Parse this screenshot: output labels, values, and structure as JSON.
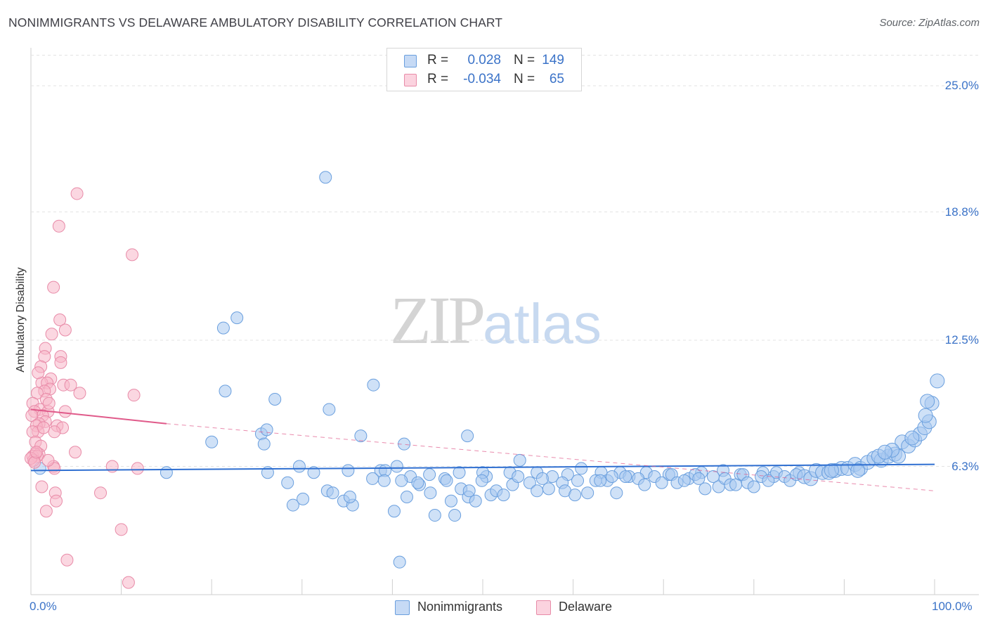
{
  "title": "NONIMMIGRANTS VS DELAWARE AMBULATORY DISABILITY CORRELATION CHART",
  "source": "Source: ZipAtlas.com",
  "watermark": {
    "part1": "ZIP",
    "part2": "atlas"
  },
  "stats": {
    "rows": [
      {
        "r_label": "R =",
        "r_value": "0.028",
        "n_label": "N =",
        "n_value": "149",
        "color": "#a8c8f0"
      },
      {
        "r_label": "R =",
        "r_value": "-0.034",
        "n_label": "N =",
        "n_value": "65",
        "color": "#f7b6c8"
      }
    ]
  },
  "legend": [
    {
      "label": "Nonimmigrants",
      "color": "#a8c8f0"
    },
    {
      "label": "Delaware",
      "color": "#f7b6c8"
    }
  ],
  "chart_data": {
    "type": "scatter",
    "title": "NONIMMIGRANTS VS DELAWARE AMBULATORY DISABILITY CORRELATION CHART",
    "xlabel": "",
    "ylabel": "Ambulatory Disability",
    "xlim": [
      0,
      100
    ],
    "ylim": [
      0,
      26.5
    ],
    "x_tick_labels": [
      "0.0%",
      "100.0%"
    ],
    "y_ticks": [
      6.3,
      12.5,
      18.8,
      25.0
    ],
    "y_tick_labels": [
      "6.3%",
      "12.5%",
      "18.8%",
      "25.0%"
    ],
    "grid": true,
    "series": [
      {
        "name": "Nonimmigrants",
        "color": "#a8c8f0",
        "stroke": "#6a9fde",
        "trend": {
          "x": [
            0,
            100
          ],
          "y": [
            6.1,
            6.4
          ],
          "color": "#2f6fd1",
          "dashed": false
        },
        "points": [
          [
            32.6,
            20.5
          ],
          [
            21.3,
            13.1
          ],
          [
            22.8,
            13.6
          ],
          [
            27.0,
            9.6
          ],
          [
            21.5,
            10.0
          ],
          [
            37.9,
            10.3
          ],
          [
            25.5,
            7.9
          ],
          [
            25.8,
            7.4
          ],
          [
            26.1,
            8.1
          ],
          [
            36.5,
            7.8
          ],
          [
            41.3,
            7.4
          ],
          [
            48.3,
            7.8
          ],
          [
            29.7,
            6.3
          ],
          [
            26.2,
            6.0
          ],
          [
            31.3,
            6.0
          ],
          [
            35.1,
            6.1
          ],
          [
            38.7,
            6.1
          ],
          [
            39.2,
            6.1
          ],
          [
            40.5,
            6.3
          ],
          [
            42.0,
            5.8
          ],
          [
            44.1,
            5.9
          ],
          [
            45.8,
            5.7
          ],
          [
            47.4,
            6.0
          ],
          [
            50.4,
            5.8
          ],
          [
            50.0,
            6.0
          ],
          [
            53.0,
            6.0
          ],
          [
            54.1,
            6.6
          ],
          [
            56.0,
            6.0
          ],
          [
            57.7,
            5.8
          ],
          [
            59.4,
            5.9
          ],
          [
            63.1,
            6.0
          ],
          [
            65.2,
            6.0
          ],
          [
            66.2,
            5.8
          ],
          [
            68.1,
            6.0
          ],
          [
            70.6,
            5.9
          ],
          [
            72.8,
            5.7
          ],
          [
            74.2,
            6.0
          ],
          [
            76.6,
            6.1
          ],
          [
            78.5,
            5.9
          ],
          [
            81.0,
            6.0
          ],
          [
            82.2,
            5.8
          ],
          [
            85.0,
            6.0
          ],
          [
            28.4,
            5.5
          ],
          [
            29.0,
            4.4
          ],
          [
            30.1,
            4.7
          ],
          [
            32.8,
            5.1
          ],
          [
            33.4,
            5.0
          ],
          [
            34.6,
            4.6
          ],
          [
            35.6,
            4.4
          ],
          [
            35.3,
            4.8
          ],
          [
            37.8,
            5.7
          ],
          [
            39.1,
            5.6
          ],
          [
            40.2,
            4.1
          ],
          [
            41.0,
            5.6
          ],
          [
            41.6,
            4.8
          ],
          [
            43.0,
            5.4
          ],
          [
            44.2,
            5.0
          ],
          [
            44.7,
            3.9
          ],
          [
            46.0,
            5.6
          ],
          [
            46.5,
            4.6
          ],
          [
            46.9,
            3.9
          ],
          [
            47.6,
            5.2
          ],
          [
            48.4,
            4.8
          ],
          [
            49.2,
            4.6
          ],
          [
            49.9,
            5.6
          ],
          [
            50.9,
            4.9
          ],
          [
            51.5,
            5.1
          ],
          [
            52.3,
            4.9
          ],
          [
            53.3,
            5.4
          ],
          [
            53.9,
            5.8
          ],
          [
            55.2,
            5.5
          ],
          [
            56.0,
            5.1
          ],
          [
            56.6,
            5.7
          ],
          [
            57.3,
            5.2
          ],
          [
            58.8,
            5.5
          ],
          [
            59.1,
            5.1
          ],
          [
            60.2,
            4.9
          ],
          [
            60.5,
            5.6
          ],
          [
            61.6,
            5.0
          ],
          [
            62.5,
            5.6
          ],
          [
            63.8,
            5.6
          ],
          [
            64.3,
            5.8
          ],
          [
            64.8,
            5.0
          ],
          [
            65.8,
            5.8
          ],
          [
            67.2,
            5.7
          ],
          [
            67.9,
            5.4
          ],
          [
            69.0,
            5.8
          ],
          [
            69.8,
            5.5
          ],
          [
            70.9,
            5.9
          ],
          [
            71.5,
            5.5
          ],
          [
            72.3,
            5.6
          ],
          [
            73.5,
            5.9
          ],
          [
            74.6,
            5.2
          ],
          [
            75.5,
            5.8
          ],
          [
            76.1,
            5.3
          ],
          [
            76.8,
            5.7
          ],
          [
            77.4,
            5.4
          ],
          [
            78.0,
            5.4
          ],
          [
            78.8,
            5.9
          ],
          [
            79.3,
            5.5
          ],
          [
            80.0,
            5.3
          ],
          [
            80.8,
            5.8
          ],
          [
            81.6,
            5.6
          ],
          [
            82.5,
            6.0
          ],
          [
            83.4,
            5.8
          ],
          [
            84.0,
            5.6
          ],
          [
            84.7,
            5.9
          ],
          [
            85.6,
            5.8
          ],
          [
            86.3,
            5.7
          ],
          [
            86.9,
            6.1
          ],
          [
            87.6,
            6.0
          ],
          [
            88.3,
            6.0
          ],
          [
            89.0,
            6.1
          ],
          [
            89.7,
            6.2
          ],
          [
            90.4,
            6.2
          ],
          [
            91.2,
            6.4
          ],
          [
            91.8,
            6.2
          ],
          [
            92.6,
            6.5
          ],
          [
            93.3,
            6.7
          ],
          [
            94.1,
            6.6
          ],
          [
            94.9,
            6.8
          ],
          [
            95.6,
            6.9
          ],
          [
            96.4,
            7.5
          ],
          [
            97.1,
            7.3
          ],
          [
            97.8,
            7.6
          ],
          [
            98.4,
            7.9
          ],
          [
            98.9,
            8.2
          ],
          [
            99.4,
            8.5
          ],
          [
            96.0,
            6.8
          ],
          [
            95.3,
            7.1
          ],
          [
            97.5,
            7.7
          ],
          [
            1.0,
            6.2
          ],
          [
            15.0,
            6.0
          ],
          [
            33.0,
            9.1
          ],
          [
            48.5,
            5.1
          ],
          [
            60.9,
            6.2
          ],
          [
            63.0,
            5.6
          ],
          [
            73.9,
            5.7
          ],
          [
            88.6,
            6.1
          ],
          [
            91.5,
            6.1
          ],
          [
            93.8,
            6.8
          ],
          [
            94.5,
            7.0
          ],
          [
            99.0,
            8.8
          ],
          [
            99.7,
            9.4
          ],
          [
            100.3,
            10.5
          ],
          [
            99.2,
            9.5
          ],
          [
            42.8,
            5.5
          ],
          [
            40.8,
            1.6
          ],
          [
            20.0,
            7.5
          ]
        ]
      },
      {
        "name": "Delaware",
        "color": "#f7b6c8",
        "stroke": "#e88ba8",
        "trend": {
          "x": [
            0,
            15
          ],
          "y": [
            9.1,
            8.4
          ],
          "color": "#e05a8a",
          "dashed": false,
          "extended": {
            "x": [
              15,
              100
            ],
            "y": [
              8.4,
              5.1
            ],
            "dashed": true
          }
        },
        "points": [
          [
            5.1,
            19.7
          ],
          [
            3.1,
            18.1
          ],
          [
            11.2,
            16.7
          ],
          [
            2.5,
            15.1
          ],
          [
            3.2,
            13.5
          ],
          [
            3.8,
            13.0
          ],
          [
            2.3,
            12.8
          ],
          [
            1.6,
            12.1
          ],
          [
            3.3,
            11.7
          ],
          [
            1.5,
            11.7
          ],
          [
            3.3,
            11.4
          ],
          [
            1.1,
            11.2
          ],
          [
            2.2,
            10.6
          ],
          [
            1.2,
            10.4
          ],
          [
            1.8,
            10.4
          ],
          [
            3.6,
            10.3
          ],
          [
            4.4,
            10.3
          ],
          [
            2.1,
            10.1
          ],
          [
            1.5,
            10.0
          ],
          [
            0.7,
            9.9
          ],
          [
            5.4,
            9.9
          ],
          [
            11.4,
            9.8
          ],
          [
            1.7,
            9.6
          ],
          [
            0.2,
            9.4
          ],
          [
            1.0,
            9.1
          ],
          [
            1.9,
            9.0
          ],
          [
            0.4,
            9.0
          ],
          [
            3.8,
            9.0
          ],
          [
            1.3,
            8.8
          ],
          [
            0.1,
            8.8
          ],
          [
            1.6,
            8.5
          ],
          [
            0.9,
            8.4
          ],
          [
            2.9,
            8.3
          ],
          [
            0.6,
            8.3
          ],
          [
            3.5,
            8.2
          ],
          [
            0.8,
            8.0
          ],
          [
            0.2,
            8.0
          ],
          [
            2.6,
            8.0
          ],
          [
            0.5,
            7.5
          ],
          [
            1.1,
            7.3
          ],
          [
            4.9,
            7.0
          ],
          [
            0.9,
            6.9
          ],
          [
            0.5,
            6.9
          ],
          [
            0.2,
            6.8
          ],
          [
            0.7,
            6.8
          ],
          [
            0.3,
            6.6
          ],
          [
            0.0,
            6.7
          ],
          [
            0.4,
            6.5
          ],
          [
            2.5,
            6.3
          ],
          [
            2.6,
            6.2
          ],
          [
            9.0,
            6.3
          ],
          [
            11.8,
            6.2
          ],
          [
            1.2,
            5.3
          ],
          [
            2.7,
            5.0
          ],
          [
            7.7,
            5.0
          ],
          [
            2.8,
            4.6
          ],
          [
            1.7,
            4.1
          ],
          [
            10.0,
            3.2
          ],
          [
            4.0,
            1.7
          ],
          [
            10.8,
            0.6
          ],
          [
            0.6,
            7.0
          ],
          [
            1.4,
            8.2
          ],
          [
            2.0,
            9.4
          ],
          [
            0.8,
            10.9
          ],
          [
            1.9,
            6.6
          ]
        ]
      }
    ]
  }
}
